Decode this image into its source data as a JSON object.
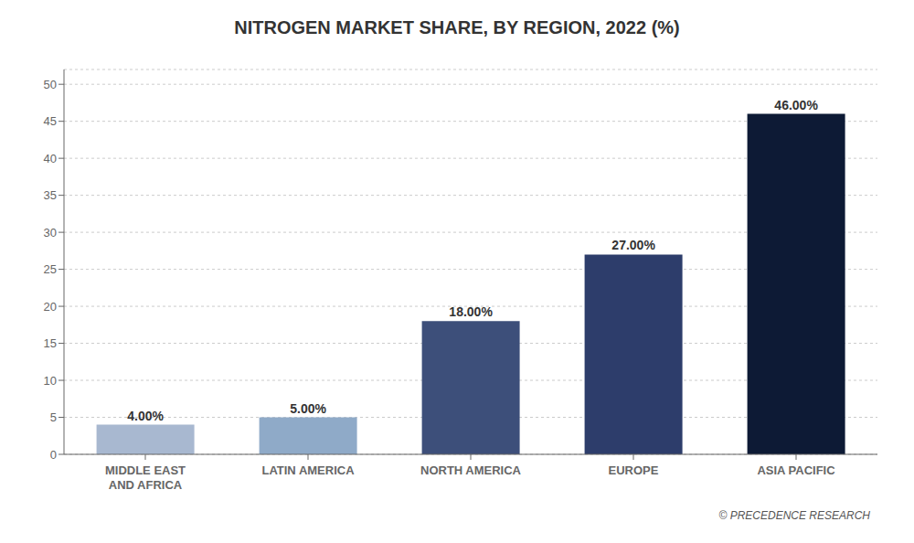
{
  "chart_data": {
    "type": "bar",
    "title": "NITROGEN MARKET SHARE, BY REGION, 2022 (%)",
    "categories": [
      "MIDDLE EAST\nAND AFRICA",
      "LATIN AMERICA",
      "NORTH AMERICA",
      "EUROPE",
      "ASIA PACIFIC"
    ],
    "values": [
      4.0,
      5.0,
      18.0,
      27.0,
      46.0
    ],
    "value_labels": [
      "4.00%",
      "5.00%",
      "18.00%",
      "27.00%",
      "46.00%"
    ],
    "colors": [
      "#a8b8d0",
      "#8faac8",
      "#3d4f7a",
      "#2d3d6b",
      "#0d1a35"
    ],
    "ylim": [
      0,
      52
    ],
    "yticks": [
      0,
      5,
      10,
      15,
      20,
      25,
      30,
      35,
      40,
      45,
      50
    ],
    "grid": true,
    "data_labels": true,
    "annotations": [
      "© PRECEDENCE RESEARCH"
    ]
  }
}
